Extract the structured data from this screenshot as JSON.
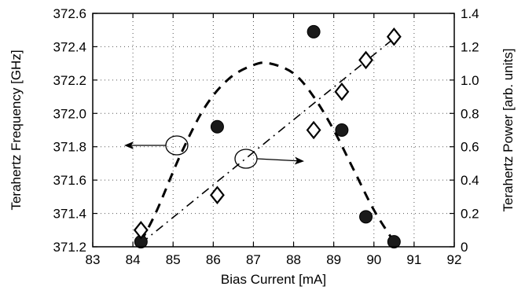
{
  "chart_data": {
    "type": "scatter",
    "xlabel": "Bias Current [mA]",
    "ylabel": "Terahertz Frequency [GHz]",
    "y2label": "Terahertz Power [arb. units]",
    "xlim": [
      83,
      92
    ],
    "ylim": [
      371.2,
      372.6
    ],
    "y2lim": [
      0,
      1.4
    ],
    "x_ticks": [
      "83",
      "84",
      "85",
      "86",
      "87",
      "88",
      "89",
      "90",
      "91",
      "92"
    ],
    "y_ticks": [
      "371.2",
      "371.4",
      "371.6",
      "371.8",
      "372.0",
      "372.2",
      "372.4",
      "372.6"
    ],
    "y2_ticks": [
      "0",
      "0.2",
      "0.4",
      "0.6",
      "0.8",
      "1.0",
      "1.2",
      "1.4"
    ],
    "grid": "dotted",
    "series": [
      {
        "axis": "left",
        "marker": "filled-circle",
        "x": [
          84.2,
          86.1,
          88.5,
          89.2,
          89.8,
          90.5
        ],
        "y": [
          371.23,
          371.92,
          372.49,
          371.9,
          371.38,
          371.23
        ]
      },
      {
        "axis": "right",
        "marker": "open-diamond",
        "x": [
          84.2,
          86.1,
          88.5,
          89.2,
          89.8,
          90.5
        ],
        "y": [
          0.1,
          0.31,
          0.7,
          0.93,
          1.12,
          1.26
        ]
      }
    ],
    "fits": [
      {
        "axis": "left",
        "style": "dashed",
        "x": [
          84.2,
          84.6,
          85.2,
          85.8,
          86.4,
          87.0,
          87.4,
          88.0,
          88.5,
          89.0,
          89.5,
          90.0,
          90.5
        ],
        "y": [
          371.23,
          371.42,
          371.76,
          372.04,
          372.21,
          372.29,
          372.3,
          372.24,
          372.1,
          371.9,
          371.66,
          371.42,
          371.23
        ]
      },
      {
        "axis": "right",
        "style": "dash-dot",
        "x": [
          84.2,
          90.5
        ],
        "y": [
          0.02,
          1.25
        ]
      }
    ],
    "annotations": [
      {
        "type": "circle-arrow",
        "target_axis": "left",
        "direction": "left"
      },
      {
        "type": "circle-arrow",
        "target_axis": "right",
        "direction": "right"
      }
    ],
    "colors": {
      "axes": "#000000",
      "grid": "#555555",
      "markers": "#1a1a1a"
    }
  }
}
